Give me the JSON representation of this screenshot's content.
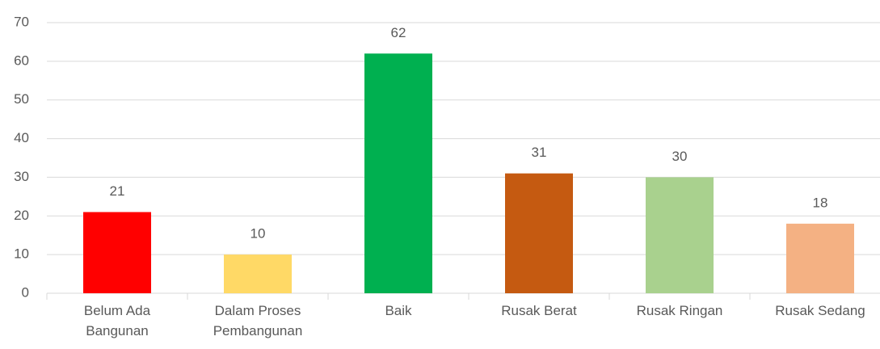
{
  "chart_data": {
    "type": "bar",
    "categories": [
      "Belum Ada Bangunan",
      "Dalam Proses Pembangunan",
      "Baik",
      "Rusak Berat",
      "Rusak Ringan",
      "Rusak Sedang"
    ],
    "values": [
      21,
      10,
      62,
      31,
      30,
      18
    ],
    "colors": [
      "#ff0000",
      "#ffd966",
      "#00b050",
      "#c55a11",
      "#a9d18e",
      "#f4b183"
    ],
    "ylim": [
      0,
      70
    ],
    "yticks": [
      0,
      10,
      20,
      30,
      40,
      50,
      60,
      70
    ],
    "grid": true
  }
}
